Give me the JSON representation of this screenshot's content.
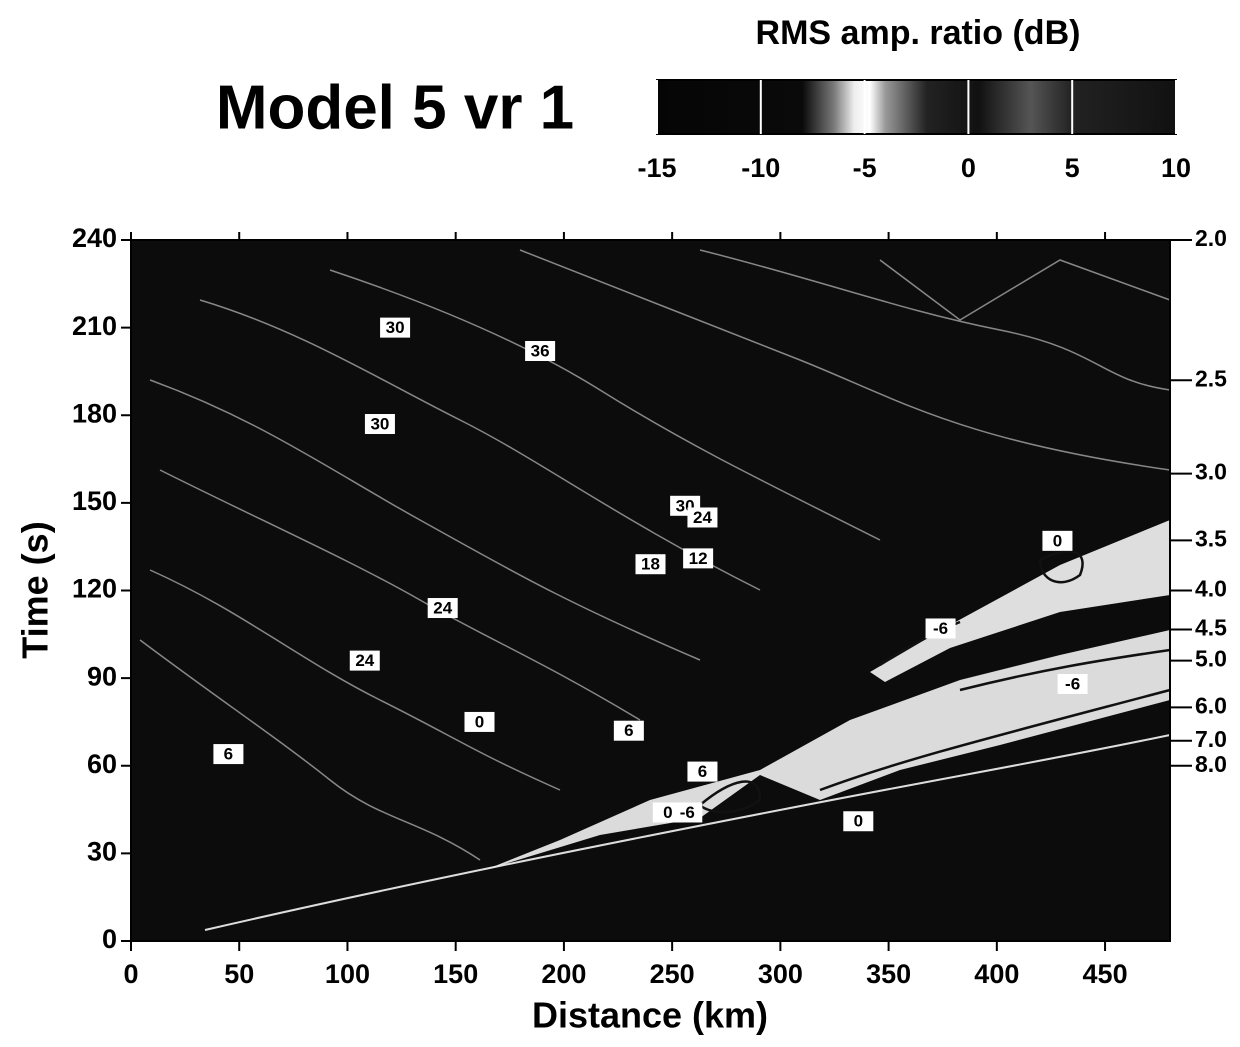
{
  "chart_data": {
    "type": "contour",
    "title": "Model 5 vr 1",
    "xlabel": "Distance (km)",
    "ylabel": "Time (s)",
    "xlim": [
      0,
      480
    ],
    "ylim": [
      0,
      240
    ],
    "xticks": [
      0,
      50,
      100,
      150,
      200,
      250,
      300,
      350,
      400,
      450
    ],
    "yticks": [
      0,
      30,
      60,
      90,
      120,
      150,
      180,
      210,
      240
    ],
    "y2ticks": [
      {
        "value": 2,
        "label": "2.0"
      },
      {
        "value": 2.5,
        "label": "2.5"
      },
      {
        "value": 3,
        "label": "3.0"
      },
      {
        "value": 3.5,
        "label": "3.5"
      },
      {
        "value": 4,
        "label": "4.0"
      },
      {
        "value": 4.5,
        "label": "4.5"
      },
      {
        "value": 5,
        "label": "5.0"
      },
      {
        "value": 6,
        "label": "6.0"
      },
      {
        "value": 7,
        "label": "7.0"
      },
      {
        "value": 8,
        "label": "8.0"
      }
    ],
    "colorbar_title": "RMS amp. ratio (dB)",
    "colorbar_lim": [
      -15,
      10
    ],
    "colorbar_ticks": [
      -15,
      -10,
      -5,
      0,
      5,
      10
    ],
    "contour_labels": [
      {
        "x": 122,
        "y": 210,
        "value": 30
      },
      {
        "x": 189,
        "y": 202,
        "value": 36
      },
      {
        "x": 115,
        "y": 177,
        "value": 30
      },
      {
        "x": 256,
        "y": 149,
        "value": 30
      },
      {
        "x": 264,
        "y": 145,
        "value": 24
      },
      {
        "x": 240,
        "y": 129,
        "value": 18
      },
      {
        "x": 262,
        "y": 131,
        "value": 12
      },
      {
        "x": 144,
        "y": 114,
        "value": 24
      },
      {
        "x": 108,
        "y": 96,
        "value": 24
      },
      {
        "x": 45,
        "y": 64,
        "value": 6
      },
      {
        "x": 161,
        "y": 75,
        "value": 0
      },
      {
        "x": 230,
        "y": 72,
        "value": 6
      },
      {
        "x": 264,
        "y": 58,
        "value": 6
      },
      {
        "x": 248,
        "y": 44,
        "value": 0
      },
      {
        "x": 257,
        "y": 44,
        "value": -6
      },
      {
        "x": 336,
        "y": 41,
        "value": 0
      },
      {
        "x": 428,
        "y": 137,
        "value": 0
      },
      {
        "x": 374,
        "y": 107,
        "value": -6
      },
      {
        "x": 435,
        "y": 88,
        "value": -6
      }
    ]
  }
}
